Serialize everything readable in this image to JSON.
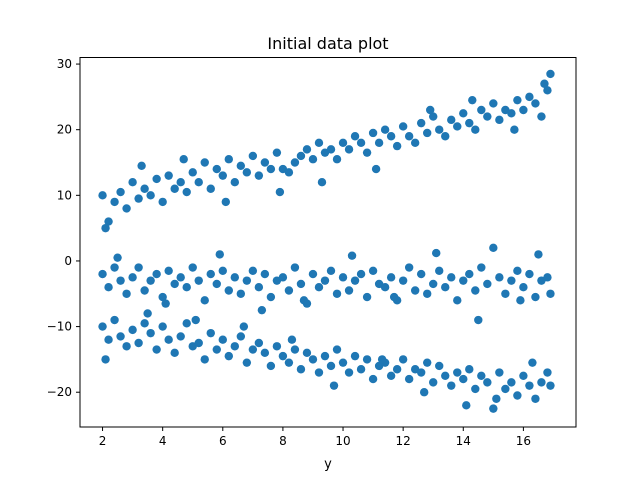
{
  "chart_data": {
    "type": "scatter",
    "title": "Initial data plot",
    "xlabel": "y",
    "ylabel": "",
    "xlim": [
      1.25,
      17.75
    ],
    "ylim": [
      -25.3,
      31.0
    ],
    "x_ticks": [
      2,
      4,
      6,
      8,
      10,
      12,
      14,
      16
    ],
    "y_ticks": [
      -20,
      -10,
      0,
      10,
      20,
      30
    ],
    "grid": false,
    "legend": "none",
    "marker_color": "#1f77b4",
    "series": [
      {
        "cluster": "upper-rising",
        "x": [
          2.0,
          2.2,
          2.4,
          2.6,
          2.8,
          3.0,
          3.2,
          3.4,
          3.6,
          3.8,
          4.0,
          4.2,
          4.4,
          4.6,
          4.8,
          5.0,
          5.2,
          5.4,
          5.6,
          5.8,
          6.0,
          6.2,
          6.4,
          6.6,
          6.8,
          7.0,
          7.2,
          7.4,
          7.6,
          7.8,
          8.0,
          8.2,
          8.4,
          8.6,
          8.8,
          9.0,
          9.2,
          9.4,
          9.6,
          9.8,
          10.0,
          10.2,
          10.4,
          10.6,
          10.8,
          11.0,
          11.2,
          11.4,
          11.6,
          11.8,
          12.0,
          12.2,
          12.4,
          12.6,
          12.8,
          13.0,
          13.2,
          13.4,
          13.6,
          13.8,
          14.0,
          14.2,
          14.4,
          14.6,
          14.8,
          15.0,
          15.2,
          15.4,
          15.6,
          15.8,
          16.0,
          16.2,
          16.4,
          16.6,
          16.8,
          16.9,
          2.1,
          3.3,
          4.7,
          6.1,
          7.9,
          9.3,
          11.1,
          12.9,
          14.3,
          15.7,
          16.7
        ],
        "y": [
          10.0,
          6.0,
          9.0,
          10.5,
          8.0,
          12.0,
          9.5,
          11.0,
          10.0,
          12.5,
          9.0,
          13.0,
          11.0,
          12.0,
          10.5,
          13.5,
          12.0,
          15.0,
          11.0,
          14.0,
          13.0,
          15.5,
          12.0,
          14.5,
          13.5,
          16.0,
          13.0,
          15.0,
          14.0,
          16.5,
          14.0,
          13.5,
          15.0,
          16.0,
          17.0,
          15.5,
          18.0,
          16.5,
          17.0,
          15.5,
          18.0,
          17.0,
          19.0,
          18.0,
          16.5,
          19.5,
          18.0,
          20.0,
          19.0,
          17.5,
          20.5,
          19.0,
          18.0,
          21.0,
          19.5,
          22.0,
          20.0,
          19.0,
          21.5,
          20.5,
          22.5,
          21.0,
          20.0,
          23.0,
          22.0,
          24.0,
          21.5,
          23.0,
          22.5,
          24.5,
          23.0,
          25.0,
          24.0,
          22.0,
          26.0,
          28.5,
          5.0,
          14.5,
          15.5,
          9.0,
          10.5,
          12.0,
          14.0,
          23.0,
          24.5,
          20.0,
          27.0
        ]
      },
      {
        "cluster": "middle-flat",
        "x": [
          2.0,
          2.2,
          2.4,
          2.6,
          2.8,
          3.0,
          3.2,
          3.4,
          3.6,
          3.8,
          4.0,
          4.2,
          4.4,
          4.6,
          4.8,
          5.0,
          5.2,
          5.4,
          5.6,
          5.8,
          6.0,
          6.2,
          6.4,
          6.6,
          6.8,
          7.0,
          7.2,
          7.4,
          7.6,
          7.8,
          8.0,
          8.2,
          8.4,
          8.6,
          8.8,
          9.0,
          9.2,
          9.4,
          9.6,
          9.8,
          10.0,
          10.2,
          10.4,
          10.6,
          10.8,
          11.0,
          11.2,
          11.4,
          11.6,
          11.8,
          12.0,
          12.2,
          12.4,
          12.6,
          12.8,
          13.0,
          13.2,
          13.4,
          13.6,
          13.8,
          14.0,
          14.2,
          14.4,
          14.6,
          14.8,
          15.0,
          15.2,
          15.4,
          15.6,
          15.8,
          16.0,
          16.2,
          16.4,
          16.6,
          16.8,
          16.9,
          2.5,
          4.1,
          5.9,
          7.3,
          8.7,
          10.3,
          11.7,
          13.1,
          14.5,
          15.9,
          16.5
        ],
        "y": [
          -2.0,
          -4.0,
          -1.0,
          -3.0,
          -5.0,
          -2.5,
          -1.0,
          -4.5,
          -3.0,
          -2.0,
          -5.5,
          -1.5,
          -3.5,
          -2.5,
          -4.0,
          -1.0,
          -3.0,
          -6.0,
          -2.0,
          -3.5,
          -1.5,
          -4.5,
          -2.5,
          -5.0,
          -3.0,
          -1.5,
          -4.0,
          -2.0,
          -5.5,
          -3.0,
          -2.5,
          -4.5,
          -1.0,
          -3.5,
          -6.5,
          -2.0,
          -4.0,
          -3.0,
          -1.5,
          -5.0,
          -2.5,
          -4.5,
          -3.0,
          -2.0,
          -5.5,
          -1.5,
          -3.5,
          -4.0,
          -2.5,
          -6.0,
          -3.0,
          -1.0,
          -4.5,
          -2.0,
          -5.0,
          -3.5,
          -1.5,
          -4.0,
          -2.5,
          -6.0,
          -3.0,
          -2.0,
          -4.5,
          -1.0,
          -3.5,
          2.0,
          -2.5,
          -5.0,
          -3.0,
          -1.5,
          -4.0,
          -2.0,
          -5.5,
          -3.0,
          -2.5,
          -5.0,
          0.5,
          -6.5,
          1.0,
          -7.5,
          -6.0,
          0.8,
          -5.5,
          1.2,
          -9.0,
          -6.0,
          1.0
        ]
      },
      {
        "cluster": "lower-falling",
        "x": [
          2.0,
          2.2,
          2.4,
          2.6,
          2.8,
          3.0,
          3.2,
          3.4,
          3.6,
          3.8,
          4.0,
          4.2,
          4.4,
          4.6,
          4.8,
          5.0,
          5.2,
          5.4,
          5.6,
          5.8,
          6.0,
          6.2,
          6.4,
          6.6,
          6.8,
          7.0,
          7.2,
          7.4,
          7.6,
          7.8,
          8.0,
          8.2,
          8.4,
          8.6,
          8.8,
          9.0,
          9.2,
          9.4,
          9.6,
          9.8,
          10.0,
          10.2,
          10.4,
          10.6,
          10.8,
          11.0,
          11.2,
          11.4,
          11.6,
          11.8,
          12.0,
          12.2,
          12.4,
          12.6,
          12.8,
          13.0,
          13.2,
          13.4,
          13.6,
          13.8,
          14.0,
          14.2,
          14.4,
          14.6,
          14.8,
          15.0,
          15.2,
          15.4,
          15.6,
          15.8,
          16.0,
          16.2,
          16.4,
          16.6,
          16.8,
          16.9,
          2.1,
          3.5,
          5.1,
          6.7,
          8.3,
          9.7,
          11.3,
          12.7,
          14.1,
          15.1,
          16.3
        ],
        "y": [
          -10.0,
          -12.0,
          -9.0,
          -11.5,
          -13.0,
          -10.5,
          -12.5,
          -9.5,
          -11.0,
          -13.5,
          -10.0,
          -12.0,
          -14.0,
          -11.5,
          -9.5,
          -13.0,
          -12.5,
          -15.0,
          -11.0,
          -13.5,
          -12.0,
          -14.5,
          -13.0,
          -11.5,
          -15.5,
          -13.5,
          -12.5,
          -14.0,
          -16.0,
          -13.0,
          -14.5,
          -15.5,
          -13.5,
          -16.5,
          -14.0,
          -15.0,
          -17.0,
          -14.5,
          -16.0,
          -13.5,
          -15.5,
          -17.0,
          -14.5,
          -16.5,
          -15.0,
          -18.0,
          -16.0,
          -15.5,
          -17.5,
          -16.5,
          -15.0,
          -18.0,
          -16.5,
          -17.0,
          -15.5,
          -18.5,
          -16.0,
          -17.5,
          -19.0,
          -17.0,
          -18.0,
          -16.5,
          -19.5,
          -17.5,
          -18.5,
          -22.5,
          -17.0,
          -19.5,
          -18.5,
          -20.5,
          -17.5,
          -19.0,
          -21.0,
          -18.5,
          -17.0,
          -19.0,
          -15.0,
          -8.0,
          -9.0,
          -10.0,
          -12.0,
          -19.0,
          -15.0,
          -20.0,
          -22.0,
          -21.0,
          -15.5
        ]
      }
    ]
  }
}
